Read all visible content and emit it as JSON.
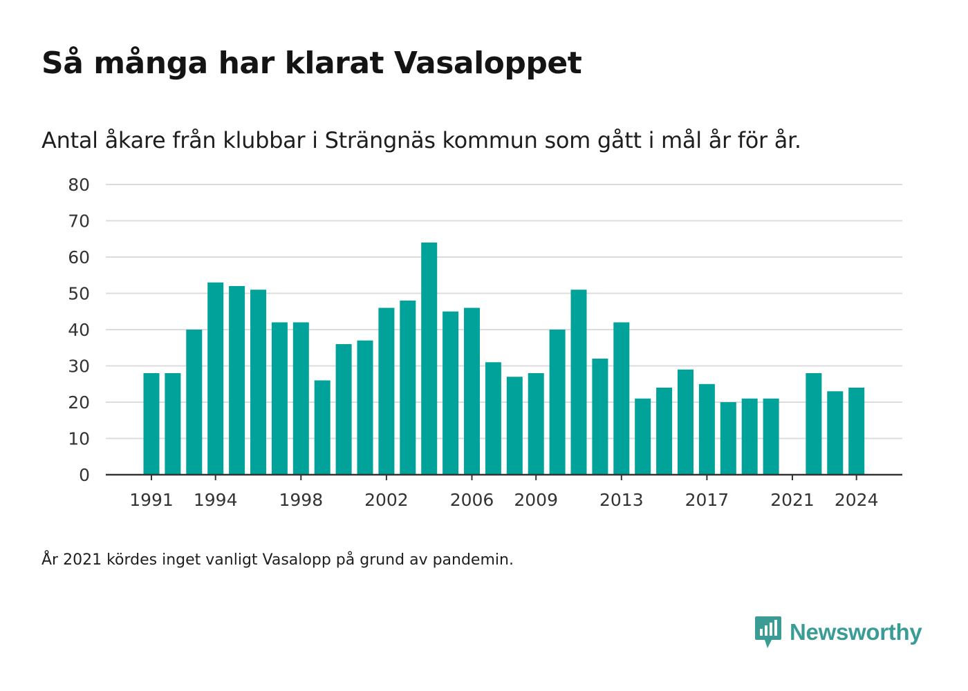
{
  "header": {
    "title": "Så många har klarat Vasaloppet",
    "subtitle": "Antal åkare från klubbar i Strängnäs kommun som gått i mål år för år."
  },
  "footer": {
    "note": "År 2021 kördes inget vanligt Vasalopp på grund av pandemin.",
    "brand": "Newsworthy"
  },
  "colors": {
    "bar": "#00a29a",
    "grid": "#dcdcdc",
    "axis": "#333333",
    "brand": "#3a9c95"
  },
  "icons": {
    "brand_logo": "newsworthy-logo-icon"
  },
  "chart_data": {
    "type": "bar",
    "title": "Så många har klarat Vasaloppet",
    "subtitle": "Antal åkare från klubbar i Strängnäs kommun som gått i mål år för år.",
    "xlabel": "",
    "ylabel": "",
    "ylim": [
      0,
      80
    ],
    "yticks": [
      0,
      10,
      20,
      30,
      40,
      50,
      60,
      70,
      80
    ],
    "xticks": [
      1991,
      1994,
      1998,
      2002,
      2006,
      2009,
      2013,
      2017,
      2021,
      2024
    ],
    "grid": true,
    "legend": "none",
    "categories": [
      1991,
      1992,
      1993,
      1994,
      1995,
      1996,
      1997,
      1998,
      1999,
      2000,
      2001,
      2002,
      2003,
      2004,
      2005,
      2006,
      2007,
      2008,
      2009,
      2010,
      2011,
      2012,
      2013,
      2014,
      2015,
      2016,
      2017,
      2018,
      2019,
      2020,
      2021,
      2022,
      2023,
      2024
    ],
    "values": [
      28,
      28,
      40,
      53,
      52,
      51,
      42,
      42,
      26,
      36,
      37,
      46,
      48,
      64,
      45,
      46,
      31,
      27,
      28,
      40,
      51,
      32,
      42,
      21,
      24,
      29,
      25,
      20,
      21,
      21,
      null,
      28,
      23,
      24
    ]
  }
}
